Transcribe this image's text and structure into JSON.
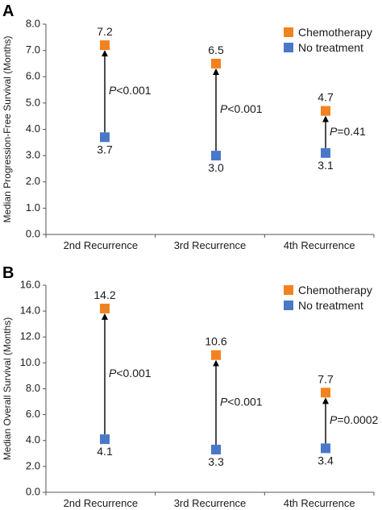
{
  "colors": {
    "chemotherapy": "#f28220",
    "no_treatment": "#4a78c9",
    "axis": "#555555",
    "arrow": "#000000"
  },
  "chart_data": [
    {
      "panel": "A",
      "type": "scatter",
      "ylabel": "Median Progression-Free Survival (Months)",
      "categories": [
        "2nd Recurrence",
        "3rd Recurrence",
        "4th Recurrence"
      ],
      "ylim": [
        0,
        8
      ],
      "yticks": [
        "0.0",
        "1.0",
        "2.0",
        "3.0",
        "4.0",
        "5.0",
        "6.0",
        "7.0",
        "8.0"
      ],
      "grid": false,
      "legend_position": "top-right",
      "series": [
        {
          "name": "Chemotherapy",
          "values": [
            7.2,
            6.5,
            4.7
          ],
          "labels": [
            "7.2",
            "6.5",
            "4.7"
          ]
        },
        {
          "name": "No treatment",
          "values": [
            3.7,
            3.0,
            3.1
          ],
          "labels": [
            "3.7",
            "3.0",
            "3.1"
          ]
        }
      ],
      "p_values": [
        "<0.001",
        "<0.001",
        "=0.41"
      ]
    },
    {
      "panel": "B",
      "type": "scatter",
      "ylabel": "Median Overall Survival (Months)",
      "categories": [
        "2nd Recurrence",
        "3rd Recurrence",
        "4th Recurrence"
      ],
      "ylim": [
        0,
        16
      ],
      "yticks": [
        "0.0",
        "2.0",
        "4.0",
        "6.0",
        "8.0",
        "10.0",
        "12.0",
        "14.0",
        "16.0"
      ],
      "grid": false,
      "legend_position": "top-right",
      "series": [
        {
          "name": "Chemotherapy",
          "values": [
            14.2,
            10.6,
            7.7
          ],
          "labels": [
            "14.2",
            "10.6",
            "7.7"
          ]
        },
        {
          "name": "No treatment",
          "values": [
            4.1,
            3.3,
            3.4
          ],
          "labels": [
            "4.1",
            "3.3",
            "3.4"
          ]
        }
      ],
      "p_values": [
        "<0.001",
        "<0.001",
        "=0.0002"
      ]
    }
  ]
}
